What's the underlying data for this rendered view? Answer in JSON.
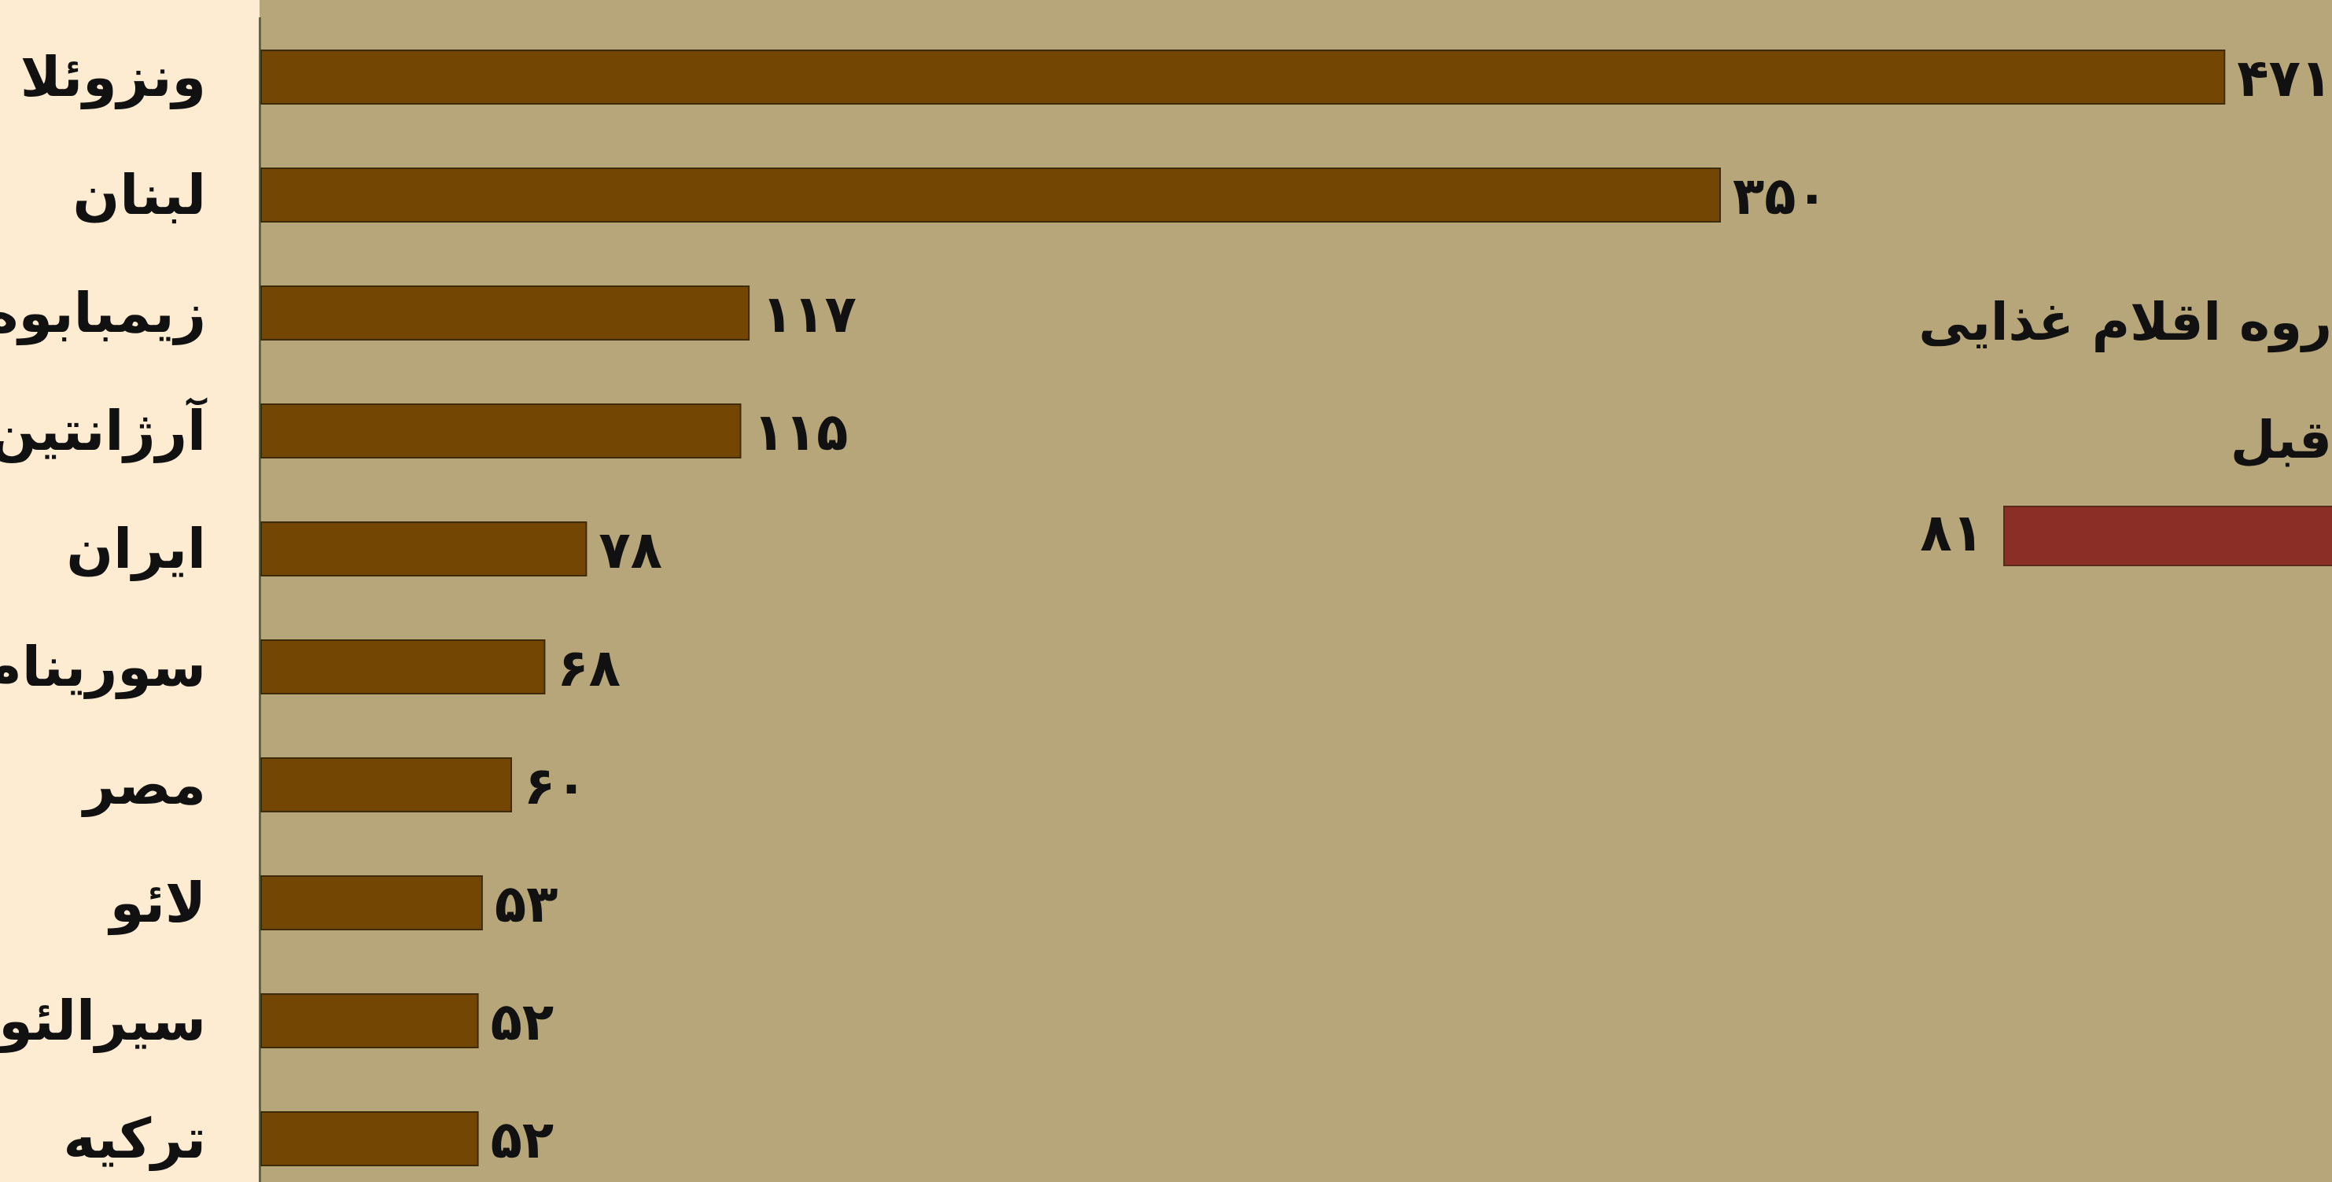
{
  "chart_data": {
    "type": "bar",
    "orientation": "horizontal",
    "categories": [
      "ونزوئلا",
      "لبنان",
      "زیمبابوه",
      "آرژانتین",
      "ایران",
      "سورینام",
      "مصر",
      "لائو",
      "سیرالئون",
      "ترکیه"
    ],
    "value_labels": [
      "۴۷۱",
      "۳۵۰",
      "۱۱۷",
      "۱۱۵",
      "۷۸",
      "۶۸",
      "۶۰",
      "۵۳",
      "۵۲",
      "۵۲"
    ],
    "values": [
      471,
      350,
      117,
      115,
      78,
      68,
      60,
      53,
      52,
      52
    ],
    "bar_color": "#734603",
    "xlim": [
      0,
      500
    ],
    "grid": false,
    "legend": {
      "title_lines": [
        "روه اقلام غذایی",
        "قبل"
      ],
      "value_label": "۸۱",
      "value": 81,
      "color": "#8b2e25"
    }
  }
}
